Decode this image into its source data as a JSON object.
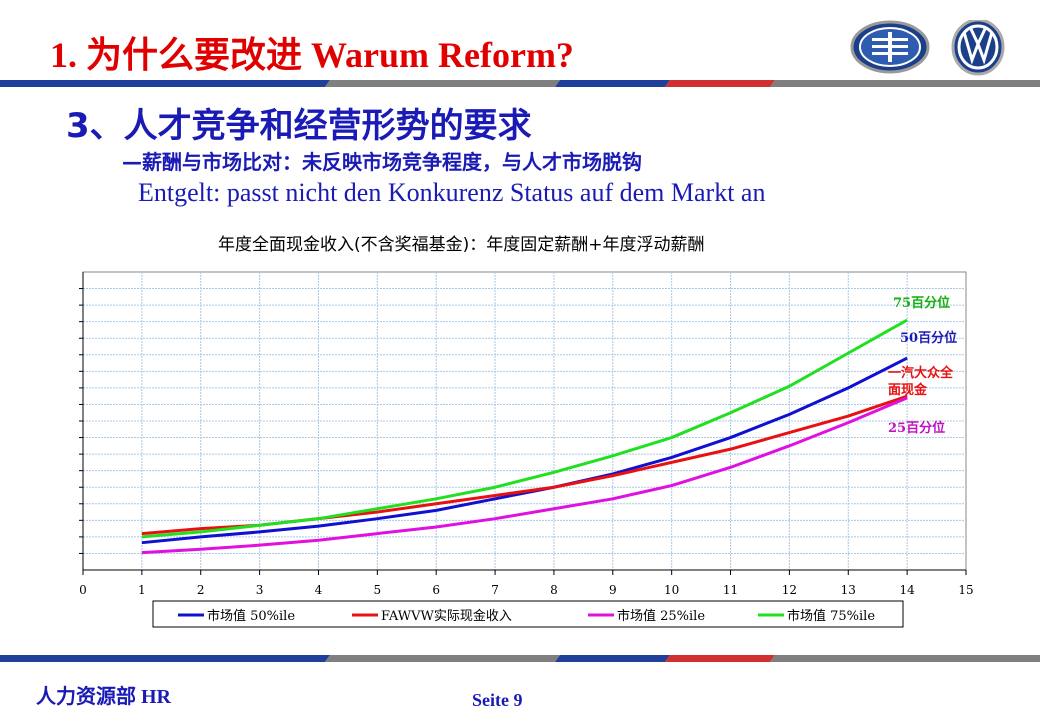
{
  "header": {
    "title": "1. 为什么要改进  Warum Reform?"
  },
  "section": {
    "heading": "3、人才竞争和经营形势的要求",
    "subtitle_cn": "—薪酬与市场比对：未反映市场竞争程度，与人才市场脱钩",
    "subtitle_de": "Entgelt: passt nicht den Konkurenz Status auf dem Markt an"
  },
  "colors": {
    "title": "#e00000",
    "heading": "#1a1ab4",
    "bar_blue": "#1f3f9a",
    "bar_grey": "#7f7f7f",
    "bar_red": "#d03030"
  },
  "chart_data": {
    "type": "line",
    "title": "年度全面现金收入(不含奖福基金)：年度固定薪酬+年度浮动薪酬",
    "xlabel": "",
    "ylabel": "",
    "xlim": [
      0,
      15
    ],
    "ylim": [
      0,
      18
    ],
    "x_ticks": [
      "0",
      "1",
      "2",
      "3",
      "4",
      "5",
      "6",
      "7",
      "8",
      "9",
      "10",
      "11",
      "12",
      "13",
      "14",
      "15"
    ],
    "grid": true,
    "legend_position": "bottom",
    "x": [
      1,
      2,
      3,
      4,
      5,
      6,
      7,
      8,
      9,
      10,
      11,
      12,
      13,
      14
    ],
    "series": [
      {
        "name": "市场值 50%ile",
        "color": "#1010d0",
        "label": "50百分位",
        "values": [
          1.65,
          2.0,
          2.3,
          2.65,
          3.1,
          3.6,
          4.3,
          5.0,
          5.8,
          6.8,
          8.0,
          9.4,
          11.0,
          12.8
        ]
      },
      {
        "name": "FAWVW实际现金收入",
        "color": "#e81010",
        "label": "一汽大众全面现金",
        "values": [
          2.2,
          2.5,
          2.7,
          3.1,
          3.5,
          4.0,
          4.5,
          5.0,
          5.7,
          6.5,
          7.3,
          8.3,
          9.3,
          10.5
        ]
      },
      {
        "name": "市场值 25%ile",
        "color": "#e010e0",
        "label": "25百分位",
        "values": [
          1.05,
          1.25,
          1.5,
          1.8,
          2.2,
          2.6,
          3.1,
          3.7,
          4.3,
          5.1,
          6.2,
          7.5,
          8.9,
          10.4
        ]
      },
      {
        "name": "市场值 75%ile",
        "color": "#20e020",
        "label": "75百分位",
        "values": [
          2.0,
          2.3,
          2.7,
          3.1,
          3.7,
          4.3,
          5.0,
          5.9,
          6.9,
          8.0,
          9.5,
          11.1,
          13.1,
          15.1
        ]
      }
    ]
  },
  "footer": {
    "department": "人力资源部  HR",
    "page": "Seite  9"
  }
}
